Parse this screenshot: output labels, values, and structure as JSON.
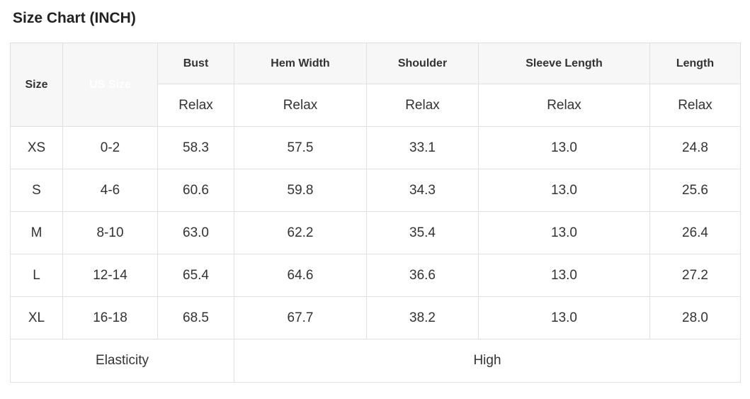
{
  "chart_data": {
    "type": "table",
    "title": "Size Chart (INCH)",
    "unit": "INCH",
    "columns": [
      "Size",
      "US Size",
      "Bust",
      "Hem Width",
      "Shoulder",
      "Sleeve Length",
      "Length"
    ],
    "sub_header": [
      "",
      "",
      "Relax",
      "Relax",
      "Relax",
      "Relax",
      "Relax"
    ],
    "rows": [
      [
        "XS",
        "0-2",
        "58.3",
        "57.5",
        "33.1",
        "13.0",
        "24.8"
      ],
      [
        "S",
        "4-6",
        "60.6",
        "59.8",
        "34.3",
        "13.0",
        "25.6"
      ],
      [
        "M",
        "8-10",
        "63.0",
        "62.2",
        "35.4",
        "13.0",
        "26.4"
      ],
      [
        "L",
        "12-14",
        "65.4",
        "64.6",
        "36.6",
        "13.0",
        "27.2"
      ],
      [
        "XL",
        "16-18",
        "68.5",
        "67.7",
        "38.2",
        "13.0",
        "28.0"
      ]
    ],
    "footer": {
      "label": "Elasticity",
      "value": "High"
    }
  },
  "colors": {
    "us_size_header_bg": "#474747",
    "us_size_header_text": "#ffffff",
    "header_bg": "#f7f7f7",
    "border": "#e0e0e0",
    "body_text": "#333333",
    "title_text": "#222222"
  }
}
